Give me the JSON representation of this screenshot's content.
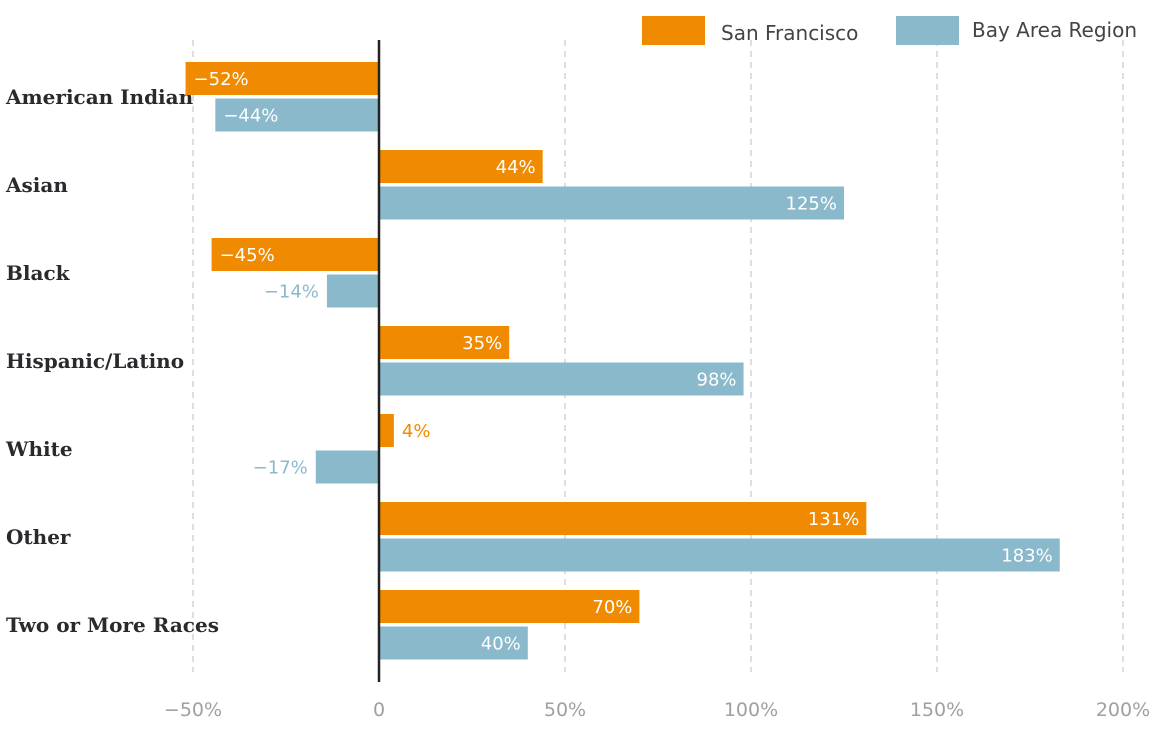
{
  "chart_data": {
    "type": "bar",
    "orientation": "horizontal",
    "title": "",
    "xlabel": "",
    "ylabel": "",
    "categories": [
      "American Indian",
      "Asian",
      "Black",
      "Hispanic/Latino",
      "White",
      "Other",
      "Two or More Races"
    ],
    "series": [
      {
        "name": "San Francisco",
        "color": "#f08a00",
        "values": [
          -52,
          44,
          -45,
          35,
          4,
          131,
          70
        ],
        "labels": [
          "-52%",
          "44%",
          "-45%",
          "35%",
          "4%",
          "131%",
          "70%"
        ]
      },
      {
        "name": "Bay Area Region",
        "color": "#8ab9cc",
        "values": [
          -44,
          125,
          -14,
          98,
          -17,
          183,
          40
        ],
        "labels": [
          "-44%",
          "125%",
          "-14%",
          "98%",
          "-17%",
          "183%",
          "40%"
        ]
      }
    ],
    "xlim": [
      -50,
      200
    ],
    "x_ticks": [
      -50,
      0,
      50,
      100,
      150,
      200
    ],
    "x_tick_labels": [
      "-50%",
      "0",
      "50%",
      "100%",
      "150%",
      "200%"
    ],
    "grid": true,
    "legend_position": "top-right"
  }
}
